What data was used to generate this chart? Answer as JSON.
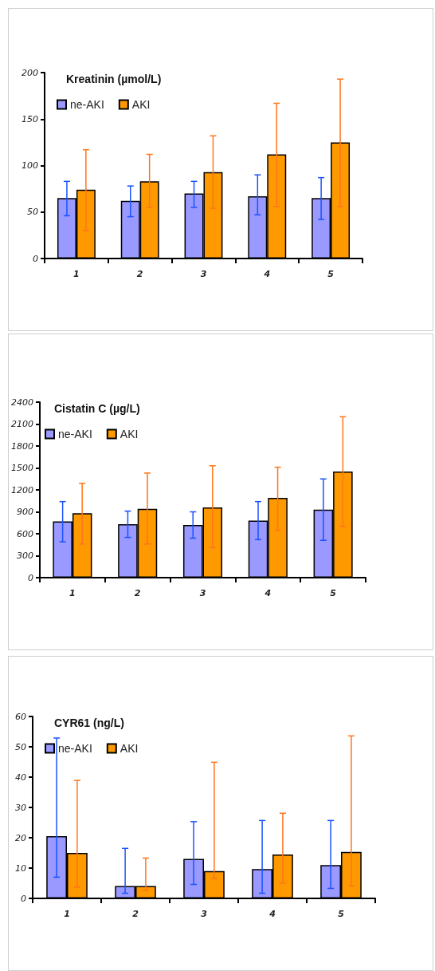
{
  "chart_data": [
    {
      "type": "bar",
      "title": "Kreatinin (µmol/L)",
      "categories": [
        "1",
        "2",
        "3",
        "4",
        "5"
      ],
      "ylim": [
        0,
        200
      ],
      "yticks": [
        0,
        50,
        100,
        150,
        200
      ],
      "grid": false,
      "legend": "top left",
      "series": [
        {
          "name": "ne-AKI",
          "color": "#9999ff",
          "values": [
            65,
            62,
            70,
            67,
            65
          ],
          "errors": [
            [
              46,
              83
            ],
            [
              45,
              78
            ],
            [
              55,
              83
            ],
            [
              47,
              90
            ],
            [
              42,
              87
            ]
          ]
        },
        {
          "name": "AKI",
          "color": "#ff9900",
          "values": [
            74,
            83,
            93,
            112,
            125
          ],
          "errors": [
            [
              30,
              117
            ],
            [
              55,
              112
            ],
            [
              54,
              132
            ],
            [
              56,
              167
            ],
            [
              56,
              193
            ]
          ]
        }
      ]
    },
    {
      "type": "bar",
      "title": "Cistatin C (µg/L)",
      "categories": [
        "1",
        "2",
        "3",
        "4",
        "5"
      ],
      "ylim": [
        0,
        2400
      ],
      "yticks": [
        0,
        300,
        600,
        900,
        1200,
        1500,
        1800,
        2100,
        2400
      ],
      "grid": false,
      "legend": "top left",
      "series": [
        {
          "name": "ne-AKI",
          "color": "#9999ff",
          "values": [
            770,
            730,
            720,
            780,
            930
          ],
          "errors": [
            [
              490,
              1040
            ],
            [
              550,
              910
            ],
            [
              540,
              900
            ],
            [
              520,
              1040
            ],
            [
              510,
              1350
            ]
          ]
        },
        {
          "name": "AKI",
          "color": "#ff9900",
          "values": [
            880,
            940,
            960,
            1090,
            1450
          ],
          "errors": [
            [
              460,
              1290
            ],
            [
              460,
              1430
            ],
            [
              410,
              1530
            ],
            [
              650,
              1510
            ],
            [
              700,
              2200
            ]
          ]
        }
      ]
    },
    {
      "type": "bar",
      "title": "CYR61 (ng/L)",
      "categories": [
        "1",
        "2",
        "3",
        "4",
        "5"
      ],
      "ylim": [
        0,
        60
      ],
      "yticks": [
        0,
        10,
        20,
        30,
        40,
        50,
        60
      ],
      "grid": false,
      "legend": "top left",
      "series": [
        {
          "name": "ne-AKI",
          "color": "#9999ff",
          "values": [
            20.5,
            4.1,
            13.0,
            9.7,
            11.0
          ],
          "errors": [
            [
              7.0,
              52.9
            ],
            [
              1.7,
              16.5
            ],
            [
              4.6,
              25.3
            ],
            [
              1.7,
              25.7
            ],
            [
              3.3,
              25.7
            ]
          ]
        },
        {
          "name": "AKI",
          "color": "#ff9900",
          "values": [
            15.0,
            4.1,
            9.0,
            14.5,
            15.3
          ],
          "errors": [
            [
              3.7,
              38.9
            ],
            [
              2.6,
              13.3
            ],
            [
              6.6,
              44.9
            ],
            [
              5.0,
              28.1
            ],
            [
              4.2,
              53.6
            ]
          ]
        }
      ]
    }
  ]
}
